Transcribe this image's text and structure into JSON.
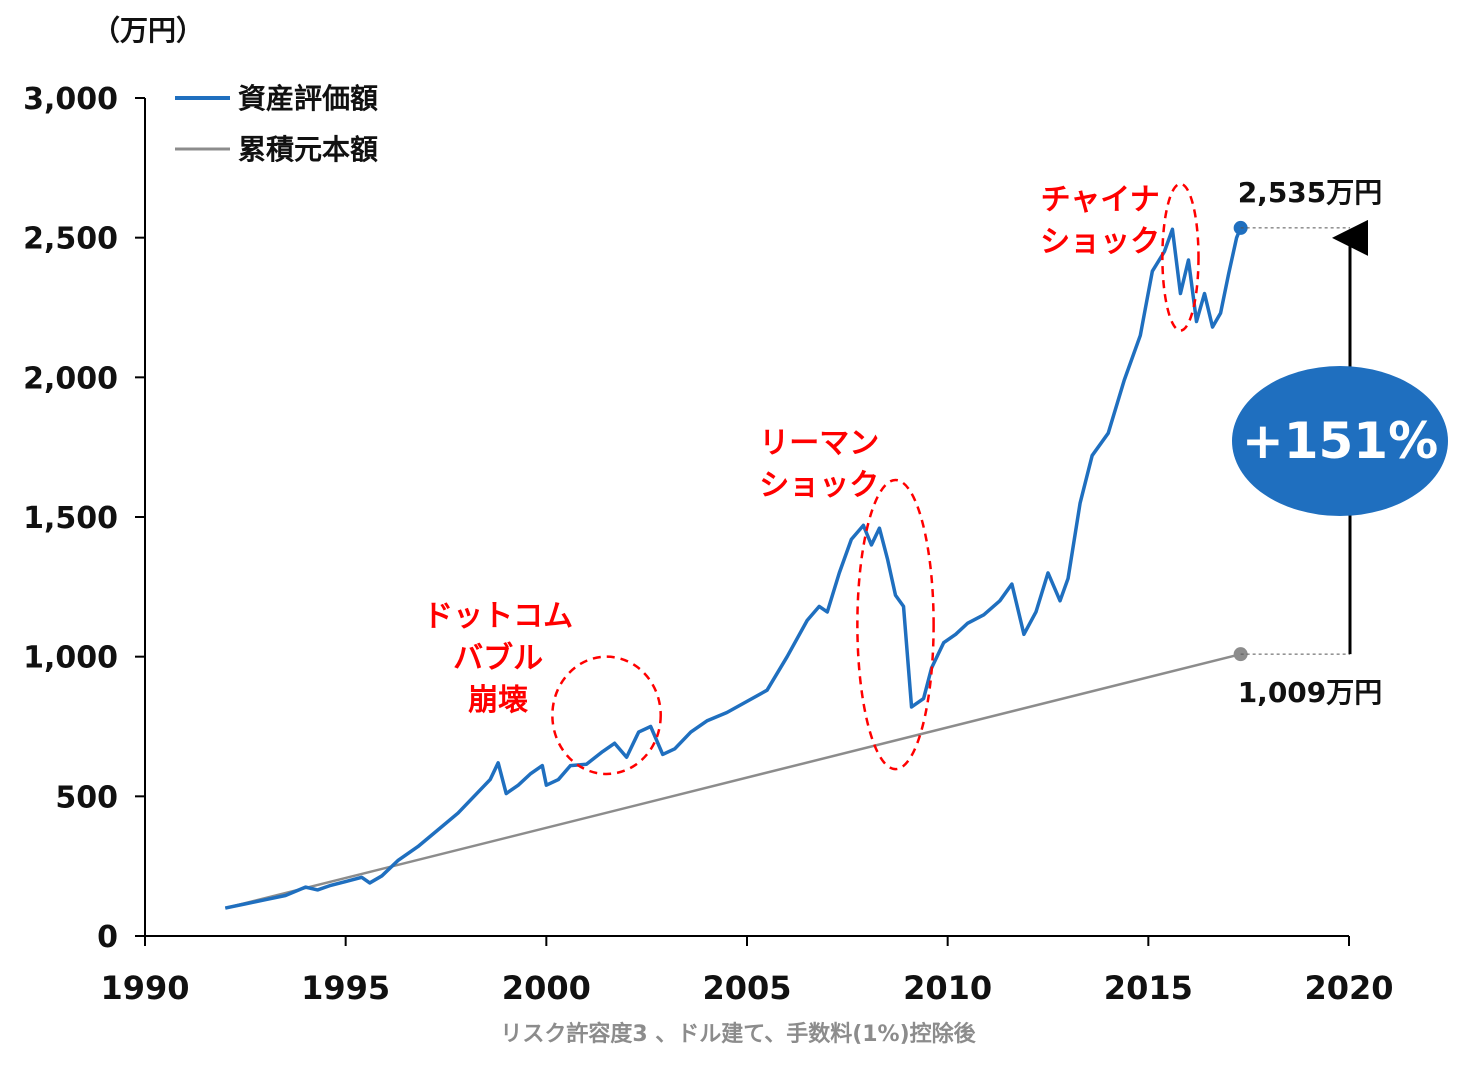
{
  "chart_data": {
    "type": "line",
    "unit_label": "（万円）",
    "footnote": "リスク許容度3 、ドル建て、手数料(1%)控除後",
    "xlim": [
      1990,
      2020
    ],
    "ylim": [
      0,
      3000
    ],
    "x_ticks": [
      "1990",
      "1995",
      "2000",
      "2005",
      "2010",
      "2015",
      "2020"
    ],
    "y_ticks": [
      "0",
      "500",
      "1,000",
      "1,500",
      "2,000",
      "2,500",
      "3,000"
    ],
    "legend_position": "top-left",
    "grid": false,
    "series": [
      {
        "name": "資産評価額",
        "color": "#1f6fbf",
        "points": [
          [
            1992.0,
            100
          ],
          [
            1992.5,
            115
          ],
          [
            1993.0,
            130
          ],
          [
            1993.5,
            145
          ],
          [
            1994.0,
            175
          ],
          [
            1994.3,
            165
          ],
          [
            1994.6,
            180
          ],
          [
            1995.0,
            195
          ],
          [
            1995.4,
            210
          ],
          [
            1995.6,
            190
          ],
          [
            1995.9,
            215
          ],
          [
            1996.3,
            270
          ],
          [
            1996.8,
            320
          ],
          [
            1997.3,
            380
          ],
          [
            1997.8,
            440
          ],
          [
            1998.2,
            500
          ],
          [
            1998.6,
            560
          ],
          [
            1998.8,
            620
          ],
          [
            1999.0,
            510
          ],
          [
            1999.3,
            540
          ],
          [
            1999.6,
            580
          ],
          [
            1999.9,
            610
          ],
          [
            2000.0,
            540
          ],
          [
            2000.3,
            560
          ],
          [
            2000.6,
            610
          ],
          [
            2001.0,
            615
          ],
          [
            2001.4,
            660
          ],
          [
            2001.7,
            690
          ],
          [
            2002.0,
            640
          ],
          [
            2002.3,
            730
          ],
          [
            2002.6,
            750
          ],
          [
            2002.9,
            650
          ],
          [
            2003.2,
            670
          ],
          [
            2003.6,
            730
          ],
          [
            2004.0,
            770
          ],
          [
            2004.5,
            800
          ],
          [
            2005.0,
            840
          ],
          [
            2005.5,
            880
          ],
          [
            2006.0,
            1000
          ],
          [
            2006.5,
            1130
          ],
          [
            2006.8,
            1180
          ],
          [
            2007.0,
            1160
          ],
          [
            2007.3,
            1300
          ],
          [
            2007.6,
            1420
          ],
          [
            2007.9,
            1470
          ],
          [
            2008.1,
            1400
          ],
          [
            2008.3,
            1460
          ],
          [
            2008.5,
            1350
          ],
          [
            2008.7,
            1220
          ],
          [
            2008.9,
            1180
          ],
          [
            2009.1,
            820
          ],
          [
            2009.4,
            850
          ],
          [
            2009.6,
            960
          ],
          [
            2009.9,
            1050
          ],
          [
            2010.2,
            1080
          ],
          [
            2010.5,
            1120
          ],
          [
            2010.9,
            1150
          ],
          [
            2011.3,
            1200
          ],
          [
            2011.6,
            1260
          ],
          [
            2011.9,
            1080
          ],
          [
            2012.2,
            1160
          ],
          [
            2012.5,
            1300
          ],
          [
            2012.8,
            1200
          ],
          [
            2013.0,
            1280
          ],
          [
            2013.3,
            1550
          ],
          [
            2013.6,
            1720
          ],
          [
            2014.0,
            1800
          ],
          [
            2014.4,
            1990
          ],
          [
            2014.8,
            2150
          ],
          [
            2015.1,
            2380
          ],
          [
            2015.4,
            2450
          ],
          [
            2015.6,
            2530
          ],
          [
            2015.8,
            2300
          ],
          [
            2016.0,
            2420
          ],
          [
            2016.2,
            2200
          ],
          [
            2016.4,
            2300
          ],
          [
            2016.6,
            2180
          ],
          [
            2016.8,
            2230
          ],
          [
            2017.0,
            2370
          ],
          [
            2017.2,
            2500
          ],
          [
            2017.3,
            2535
          ]
        ]
      },
      {
        "name": "累積元本額",
        "color": "#8c8c8c",
        "points": [
          [
            1992.0,
            100
          ],
          [
            2017.3,
            1009
          ]
        ]
      }
    ],
    "annotations": [
      {
        "lines": [
          "ドットコム",
          "バブル",
          "崩壊"
        ],
        "x": 1998.8,
        "y": 1110,
        "circle": {
          "cx": 2001.5,
          "cy": 790,
          "rx_years": 2.7,
          "ry": 420
        }
      },
      {
        "lines": [
          "リーマン",
          "ショック"
        ],
        "x": 2006.8,
        "y": 1730,
        "circle": {
          "cx": 2008.7,
          "cy": 1115,
          "rx_years": 1.9,
          "ry": 1035
        }
      },
      {
        "lines": [
          "チャイナ",
          "ショック"
        ],
        "x": 2013.8,
        "y": 2600,
        "circle": {
          "cx": 2015.8,
          "cy": 2430,
          "rx_years": 0.9,
          "ry": 525
        }
      }
    ],
    "end_labels": {
      "asset": "2,535万円",
      "principal": "1,009万円"
    },
    "growth_label": "+151%"
  }
}
